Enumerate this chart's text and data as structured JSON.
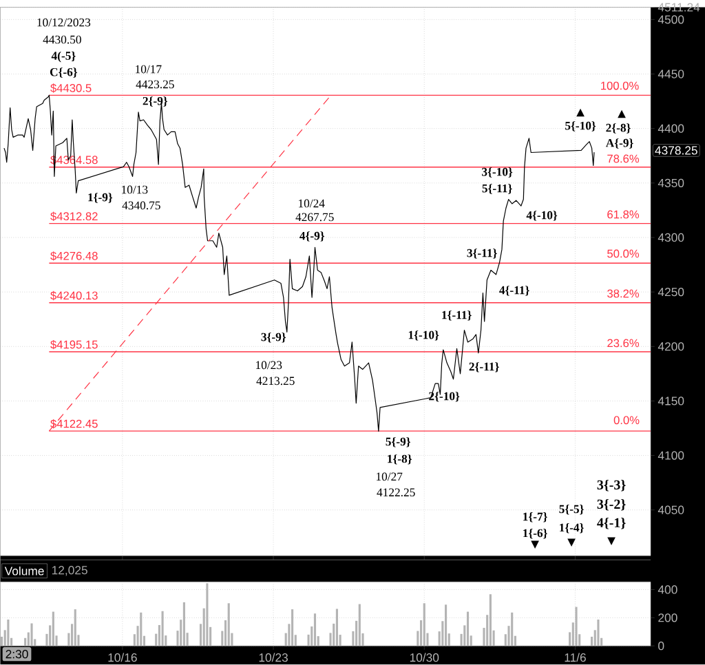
{
  "chart_data": [
    {
      "type": "line",
      "xlim": [
        "2023-10-10T08:00",
        "2023-11-09T12:00"
      ],
      "ylim": [
        4008,
        4511.24
      ],
      "xticks": [
        {
          "value": "2023-10-16",
          "label": null
        },
        {
          "value": "2023-10-23",
          "label": null
        },
        {
          "value": "2023-10-30",
          "label": null
        },
        {
          "value": "2023-11-06",
          "label": null
        }
      ],
      "yticks": [
        4050,
        4100,
        4150,
        4200,
        4250,
        4300,
        4350,
        4400,
        4450,
        4500,
        {
          "value": 4511.24,
          "label": "4511.24"
        }
      ],
      "tick_labels": "y",
      "grid": true,
      "series": [
        {
          "color": "#000000",
          "x": [
            "2023-10-10T12:14",
            "2023-10-10T13:53",
            "2023-10-10T15:07",
            "2023-10-10T16:48",
            "2023-10-10T18:58",
            "2023-10-10T20:38",
            "2023-10-10T22:19",
            "2023-10-11T03:22",
            "2023-10-11T08:53",
            "2023-10-11T10:34",
            "2023-10-11T15:07",
            "2023-10-11T17:46",
            "2023-10-11T20:10",
            "2023-10-11T22:48",
            "2023-10-12T00:29",
            "2023-10-12T07:12",
            "2023-10-12T08:53",
            "2023-10-12T13:26",
            "2023-10-12T14:24",
            "2023-10-12T15:36",
            "2023-10-12T17:17",
            "2023-10-12T18:58",
            "2023-10-12T20:10",
            "2023-10-12T21:50",
            "2023-10-13T05:31",
            "2023-10-13T10:05",
            "2023-10-13T11:46",
            "2023-10-13T14:24",
            "2023-10-13T16:05",
            "2023-10-13T17:17",
            "2023-10-13T19:26",
            "2023-10-13T20:38",
            "2023-10-13T22:48",
            "2023-10-16T01:12",
            "2023-10-16T04:34",
            "2023-10-16T07:12",
            "2023-10-16T11:17",
            "2023-10-16T12:43",
            "2023-10-16T15:07",
            "2023-10-16T17:46",
            "2023-10-16T19:26",
            "2023-10-16T23:31",
            "2023-10-17T03:50",
            "2023-10-17T07:55",
            "2023-10-17T11:17",
            "2023-10-17T13:55",
            "2023-10-17T16:05",
            "2023-10-17T17:46",
            "2023-10-17T19:26",
            "2023-10-17T20:38",
            "2023-10-17T22:19",
            "2023-10-18T02:10",
            "2023-10-18T06:14",
            "2023-10-18T10:34",
            "2023-10-18T13:26",
            "2023-10-18T16:05",
            "2023-10-18T18:58",
            "2023-10-18T21:50",
            "2023-10-19T02:10",
            "2023-10-19T06:14",
            "2023-10-19T10:05",
            "2023-10-19T12:43",
            "2023-10-19T15:36",
            "2023-10-19T18:29",
            "2023-10-19T18:58",
            "2023-10-19T21:07",
            "2023-10-19T22:48",
            "2023-10-20T04:34",
            "2023-10-20T08:53",
            "2023-10-20T11:17",
            "2023-10-20T15:36",
            "2023-10-20T17:17",
            "2023-10-20T20:10",
            "2023-10-20T22:48",
            "2023-10-23T01:12",
            "2023-10-23T08:24",
            "2023-10-23T11:17",
            "2023-10-23T13:26",
            "2023-10-23T15:07",
            "2023-10-23T16:48",
            "2023-10-23T18:29",
            "2023-10-23T21:07",
            "2023-10-24T02:53",
            "2023-10-24T08:24",
            "2023-10-24T12:14",
            "2023-10-24T16:05",
            "2023-10-24T18:58",
            "2023-10-24T21:07",
            "2023-10-24T22:19",
            "2023-10-25T01:12",
            "2023-10-25T05:02",
            "2023-10-25T08:53",
            "2023-10-25T11:46",
            "2023-10-25T14:24",
            "2023-10-25T17:17",
            "2023-10-25T20:10",
            "2023-10-25T21:50",
            "2023-10-25T23:31",
            "2023-10-26T03:22",
            "2023-10-26T07:12",
            "2023-10-26T12:43",
            "2023-10-26T15:36",
            "2023-10-26T18:29",
            "2023-10-26T20:10",
            "2023-10-26T22:48",
            "2023-10-27T03:22",
            "2023-10-27T10:05",
            "2023-10-27T14:24",
            "2023-10-27T17:17",
            "2023-10-27T19:26",
            "2023-10-27T21:07",
            "2023-10-27T22:48",
            "2023-10-30T01:12",
            "2023-10-30T07:12",
            "2023-10-30T12:14",
            "2023-10-30T15:36",
            "2023-10-30T17:46",
            "2023-10-30T19:26",
            "2023-10-30T21:07",
            "2023-10-31T01:12",
            "2023-10-31T05:31",
            "2023-10-31T08:24",
            "2023-10-31T12:14",
            "2023-10-31T16:05",
            "2023-10-31T20:38",
            "2023-11-01T00:29",
            "2023-11-01T06:14",
            "2023-11-01T09:36",
            "2023-11-01T12:14",
            "2023-11-01T15:07",
            "2023-11-01T17:17",
            "2023-11-01T18:58",
            "2023-11-01T21:50",
            "2023-11-02T02:10",
            "2023-11-02T07:55",
            "2023-11-02T11:46",
            "2023-11-02T14:24",
            "2023-11-02T16:05",
            "2023-11-02T18:58",
            "2023-11-02T21:50",
            "2023-11-03T01:41",
            "2023-11-03T06:14",
            "2023-11-03T11:46",
            "2023-11-03T14:24",
            "2023-11-03T15:36",
            "2023-11-03T17:17",
            "2023-11-03T20:38",
            "2023-11-03T22:48",
            "2023-11-06T06:43",
            "2023-11-06T12:14",
            "2023-11-06T15:50",
            "2023-11-06T18:29",
            "2023-11-06T20:10",
            "2023-11-06T21:07"
          ],
          "values": [
            4382,
            4378,
            4369,
            4386,
            4419,
            4399,
            4392,
            4394,
            4394,
            4392,
            4409,
            4399,
            4380,
            4409,
            4420,
            4423,
            4426,
            4429,
            4430.5,
            4418,
            4394,
            4416,
            4356,
            4384,
            4387,
            4391,
            4371,
            4375,
            4408,
            4388,
            4361,
            4340.75,
            4352,
            4365,
            4369,
            4365,
            4356,
            4367,
            4378,
            4415,
            4407,
            4408,
            4403,
            4399,
            4394,
            4390,
            4367,
            4407,
            4423.25,
            4409,
            4399,
            4394,
            4397,
            4397,
            4386,
            4382,
            4367,
            4346,
            4348,
            4337,
            4327,
            4337,
            4346,
            4363,
            4337,
            4308,
            4297,
            4297,
            4291,
            4304,
            4291,
            4266,
            4283,
            4247,
            4261,
            4258,
            4245,
            4223,
            4213.25,
            4240,
            4280,
            4253,
            4251,
            4255,
            4264,
            4283,
            4245,
            4272,
            4291,
            4270,
            4268,
            4260,
            4253,
            4264,
            4236,
            4220,
            4211,
            4203,
            4188,
            4182,
            4185,
            4204,
            4171,
            4148,
            4182,
            4179,
            4185,
            4169,
            4152,
            4139,
            4122.25,
            4144,
            4152,
            4153,
            4166,
            4166,
            4156,
            4184,
            4197,
            4185,
            4177,
            4170,
            4198,
            4175,
            4215,
            4204,
            4207,
            4211,
            4194,
            4215,
            4249,
            4223,
            4261,
            4270,
            4266,
            4277,
            4289,
            4315,
            4327,
            4335,
            4331,
            4334,
            4329,
            4335,
            4365,
            4382,
            4391,
            4378,
            4380,
            4385,
            4388,
            4382,
            4366,
            4378.25
          ]
        },
        {
          "type": "line",
          "color": "#ff3344",
          "line_style": "dashed",
          "x": [
            "2023-10-12T14:24",
            "2023-10-25T16:05"
          ],
          "values": [
            4122.45,
            4430.5
          ]
        }
      ],
      "ref_lines": [
        {
          "axis": "y",
          "value": 4430.5,
          "label": "$4430.5",
          "color": "#ff3344"
        },
        {
          "axis": "y",
          "value": 4364.58,
          "label": "$4364.58",
          "color": "#ff3344"
        },
        {
          "axis": "y",
          "value": 4312.82,
          "label": "$4312.82",
          "color": "#ff3344"
        },
        {
          "axis": "y",
          "value": 4276.48,
          "label": "$4276.48",
          "color": "#ff3344"
        },
        {
          "axis": "y",
          "value": 4240.13,
          "label": "$4240.13",
          "color": "#ff3344"
        },
        {
          "axis": "y",
          "value": 4195.15,
          "label": "$4195.15",
          "color": "#ff3344"
        },
        {
          "axis": "y",
          "value": 4122.45,
          "label": "$4122.45",
          "color": "#ff3344"
        }
      ],
      "annotations": [
        "10/12/2023",
        "4430.50",
        "4(-5}",
        "C{-6}",
        "10/17",
        "4423.25",
        "2{-9}",
        "1{-9}",
        "10/13",
        "4340.75",
        "10/24",
        "4267.75",
        "4{-9}",
        "3{-9}",
        "10/23",
        "4213.25",
        "5{-9}",
        "1{-8}",
        "10/27",
        "4122.25",
        "1{-10}",
        "2{-10}",
        "1{-11}",
        "2{-11}",
        "3{-11}",
        "4{-11}",
        "3{-10}",
        "5{-11}",
        "4{-10}",
        "5{-10}",
        "▲",
        "2{-8}",
        "A{-9}",
        "▲",
        "1{-7}",
        "1{-6}",
        "▼",
        "5{-5}",
        "1{-4}",
        "▼",
        "3{-3}",
        "3{-2}",
        "4{-1}",
        "▼",
        "100.0%",
        "78.6%",
        "61.8%",
        "50.0%",
        "38.2%",
        "23.6%",
        "0.0%",
        "4378.25"
      ]
    },
    {
      "type": "bar",
      "color": "#b4b4b4",
      "xlim": [
        "2023-10-10T08:00",
        "2023-11-09T12:00"
      ],
      "ylim": [
        0,
        455
      ],
      "xticks": [
        {
          "value": "2023-10-16",
          "label": "10/16"
        },
        {
          "value": "2023-10-23",
          "label": "10/23"
        },
        {
          "value": "2023-10-30",
          "label": "10/30"
        },
        {
          "value": "2023-11-06",
          "label": "11/6"
        }
      ],
      "yticks": [
        0,
        200,
        400
      ],
      "grid": true,
      "x": [
        "2023-10-10T09:36",
        "2023-10-10T13:12",
        "2023-10-10T16:48",
        "2023-10-10T20:24",
        "2023-10-11T11:46",
        "2023-10-11T15:22",
        "2023-10-11T18:58",
        "2023-10-11T22:34",
        "2023-10-12T11:46",
        "2023-10-12T15:22",
        "2023-10-12T18:58",
        "2023-10-12T22:34",
        "2023-10-13T12:14",
        "2023-10-13T15:50",
        "2023-10-13T19:26",
        "2023-10-13T23:02",
        "2023-10-16T13:26",
        "2023-10-16T17:02",
        "2023-10-16T20:38",
        "2023-10-17T00:14",
        "2023-10-17T13:26",
        "2023-10-17T17:02",
        "2023-10-17T20:38",
        "2023-10-18T00:14",
        "2023-10-18T13:26",
        "2023-10-18T17:02",
        "2023-10-18T20:38",
        "2023-10-19T00:14",
        "2023-10-19T15:07",
        "2023-10-19T18:43",
        "2023-10-19T22:19",
        "2023-10-20T01:55",
        "2023-10-20T15:07",
        "2023-10-20T18:43",
        "2023-10-20T22:19",
        "2023-10-21T01:55",
        "2023-10-23T13:55",
        "2023-10-23T17:31",
        "2023-10-23T21:07",
        "2023-10-24T00:43",
        "2023-10-24T15:07",
        "2023-10-24T18:43",
        "2023-10-24T22:19",
        "2023-10-25T01:55",
        "2023-10-25T15:36",
        "2023-10-25T19:12",
        "2023-10-25T22:48",
        "2023-10-26T02:24",
        "2023-10-26T16:48",
        "2023-10-26T20:24",
        "2023-10-27T00:00",
        "2023-10-27T03:36",
        "2023-10-29T16:48",
        "2023-10-29T20:24",
        "2023-10-30T00:00",
        "2023-10-30T03:36",
        "2023-10-30T16:48",
        "2023-10-30T20:24",
        "2023-10-31T00:00",
        "2023-10-31T03:36",
        "2023-10-31T17:17",
        "2023-10-31T20:53",
        "2023-11-01T00:29",
        "2023-11-01T04:05",
        "2023-11-01T18:29",
        "2023-11-01T22:05",
        "2023-11-02T01:41",
        "2023-11-02T05:17",
        "2023-11-02T18:29",
        "2023-11-02T22:05",
        "2023-11-03T01:41",
        "2023-11-03T05:17",
        "2023-11-05T18:00",
        "2023-11-05T21:36",
        "2023-11-06T01:12",
        "2023-11-06T04:48",
        "2023-11-06T18:29",
        "2023-11-06T22:05",
        "2023-11-07T01:41",
        "2023-11-07T05:17"
      ],
      "values": [
        65,
        112,
        187,
        56,
        56,
        96,
        160,
        48,
        85,
        146,
        243,
        73,
        91,
        156,
        260,
        78,
        83,
        142,
        237,
        71,
        86,
        148,
        247,
        74,
        108,
        186,
        310,
        93,
        156,
        267,
        445,
        134,
        106,
        182,
        303,
        91,
        91,
        156,
        260,
        78,
        80,
        138,
        230,
        69,
        92,
        158,
        263,
        79,
        104,
        178,
        297,
        89,
        106,
        182,
        303,
        91,
        103,
        176,
        293,
        88,
        85,
        146,
        243,
        73,
        128,
        220,
        367,
        110,
        83,
        142,
        237,
        71,
        97,
        166,
        277,
        83,
        65,
        112,
        187,
        56
      ],
      "annotations": [
        "Volume",
        "12,025",
        "2:30"
      ]
    }
  ]
}
